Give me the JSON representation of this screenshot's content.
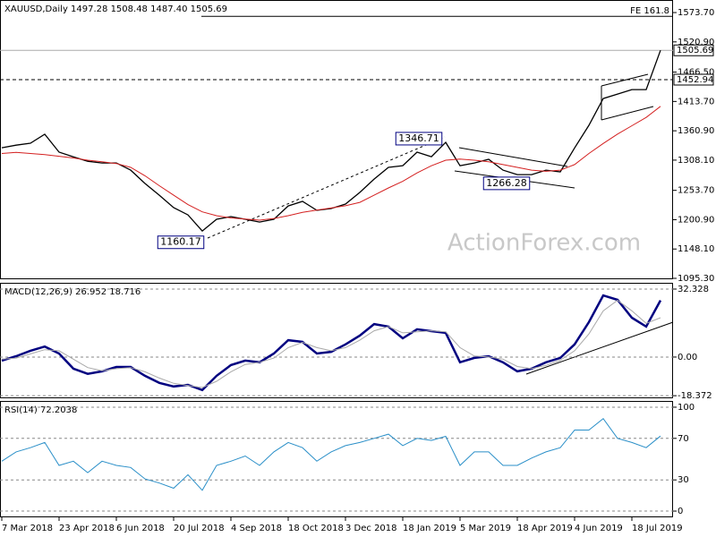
{
  "watermark": "ActionForex.com",
  "chart_data": [
    {
      "type": "line",
      "title": "XAUUSD,Daily 1497.28 1508.48 1487.40 1505.69",
      "x": [
        0,
        8,
        16,
        24,
        32,
        40,
        48,
        56,
        64,
        72,
        80,
        88,
        96,
        104,
        112,
        120,
        128,
        136,
        144,
        152,
        160,
        168,
        176,
        184,
        192,
        200,
        208,
        216,
        224,
        232,
        240,
        248,
        256,
        264,
        272,
        280,
        288,
        296,
        304,
        312,
        320,
        328,
        336,
        344,
        352,
        360,
        368
      ],
      "series": [
        {
          "name": "XAUUSD",
          "color": "#000000",
          "values": [
            1330.4,
            1335,
            1338.5,
            1354.6,
            1322.4,
            1314,
            1306,
            1303,
            1303,
            1290,
            1266,
            1245,
            1222.5,
            1209.6,
            1180.6,
            1201.6,
            1206.4,
            1201.6,
            1196.7,
            1201.6,
            1225.7,
            1233.8,
            1217.7,
            1220.9,
            1229,
            1249.9,
            1274,
            1295,
            1298.2,
            1322.4,
            1314.3,
            1340,
            1298,
            1303,
            1309.5,
            1290,
            1282,
            1282,
            1290,
            1287,
            1330,
            1370.7,
            1419,
            1427,
            1435,
            1435,
            1505.69
          ]
        },
        {
          "name": "MA",
          "color": "#d42020",
          "values": [
            1320,
            1322,
            1320,
            1318,
            1315,
            1312,
            1308,
            1305,
            1302,
            1295,
            1280,
            1262,
            1245,
            1228,
            1215,
            1208,
            1204,
            1202,
            1200,
            1203,
            1208,
            1214,
            1218,
            1222,
            1226,
            1232,
            1245,
            1258,
            1270,
            1285,
            1298,
            1308,
            1310,
            1308,
            1305,
            1300,
            1295,
            1290,
            1288,
            1290,
            1300,
            1320,
            1338,
            1355,
            1370,
            1385,
            1405
          ]
        }
      ],
      "xlim": [
        0,
        370
      ],
      "ylim": [
        1093.7,
        1596.3
      ],
      "yticks": [
        {
          "value": 1573.7,
          "label": "1573.70"
        },
        {
          "value": 1520.9,
          "label": "1520.90"
        },
        {
          "value": 1466.5,
          "label": "1466.50"
        },
        {
          "value": 1413.7,
          "label": "1413.70"
        },
        {
          "value": 1360.9,
          "label": "1360.90"
        },
        {
          "value": 1308.1,
          "label": "1308.10"
        },
        {
          "value": 1253.7,
          "label": "1253.70"
        },
        {
          "value": 1200.9,
          "label": "1200.90"
        },
        {
          "value": 1148.1,
          "label": "1148.10"
        },
        {
          "value": 1095.3,
          "label": "1095.30"
        }
      ],
      "grid": false,
      "levels": [
        {
          "value": 1505.69,
          "style": "solid"
        },
        {
          "value": 1452.94,
          "style": "dashed"
        }
      ],
      "fe_level": {
        "label": "FE 161.8",
        "value": 1567
      },
      "annotations": [
        {
          "value": 1346.71,
          "x": 233
        },
        {
          "value": 1266.28,
          "x": 282
        },
        {
          "value": 1160.17,
          "x": 100
        }
      ]
    },
    {
      "type": "line",
      "title": "MACD(12,26,9) 26.952 18.716",
      "x": [
        0,
        8,
        16,
        24,
        32,
        40,
        48,
        56,
        64,
        72,
        80,
        88,
        96,
        104,
        112,
        120,
        128,
        136,
        144,
        152,
        160,
        168,
        176,
        184,
        192,
        200,
        208,
        216,
        224,
        232,
        240,
        248,
        256,
        264,
        272,
        280,
        288,
        296,
        304,
        312,
        320,
        328,
        336,
        344,
        352,
        360,
        368
      ],
      "series": [
        {
          "name": "MACD",
          "color": "#000080",
          "values": [
            -1.7,
            0.4,
            3,
            5,
            1.7,
            -5.5,
            -8,
            -6.8,
            -4.7,
            -4.7,
            -8.9,
            -12.3,
            -14,
            -13.2,
            -15.7,
            -8.9,
            -3.8,
            -1.7,
            -2.5,
            1.7,
            8,
            7.2,
            1.7,
            2.5,
            6,
            10.2,
            15.7,
            14.5,
            8.9,
            13.2,
            12.3,
            11.5,
            -2.5,
            -0.4,
            0.4,
            -2.5,
            -6.8,
            -5.5,
            -2.5,
            -0.4,
            6,
            16.6,
            29.3,
            27.2,
            18.7,
            14.5,
            26.952
          ]
        },
        {
          "name": "Signal",
          "color": "#a8a8a8",
          "values": [
            -1,
            -0.5,
            1.5,
            3.5,
            3,
            -1,
            -5,
            -6.5,
            -5.5,
            -5,
            -7,
            -10,
            -12.5,
            -13.5,
            -14.5,
            -11.5,
            -7,
            -3.5,
            -2.5,
            -0.5,
            4.5,
            7,
            4.5,
            3,
            4.5,
            8,
            12.5,
            14.5,
            11.5,
            12,
            12.5,
            12,
            4.5,
            0.5,
            0,
            -1,
            -4.5,
            -5.5,
            -4,
            -1.5,
            3,
            11,
            22,
            27,
            22,
            16,
            18.716
          ]
        }
      ],
      "xlim": [
        0,
        370
      ],
      "ylim": [
        -19.6,
        35.3
      ],
      "yticks": [
        32.328,
        {
          "value": 0,
          "label": "0.00"
        },
        -18.372
      ],
      "grid": true
    },
    {
      "type": "line",
      "title": "RSI(14) 72.2038",
      "x": [
        0,
        8,
        16,
        24,
        32,
        40,
        48,
        56,
        64,
        72,
        80,
        88,
        96,
        104,
        112,
        120,
        128,
        136,
        144,
        152,
        160,
        168,
        176,
        184,
        192,
        200,
        208,
        216,
        224,
        232,
        240,
        248,
        256,
        264,
        272,
        280,
        288,
        296,
        304,
        312,
        320,
        328,
        336,
        344,
        352,
        360,
        368
      ],
      "series": [
        {
          "name": "RSI",
          "color": "#2a8fc8",
          "values": [
            48,
            57,
            61,
            66,
            44,
            48,
            37,
            48,
            44,
            42,
            31,
            27,
            22,
            35,
            20,
            44,
            48,
            53,
            44,
            57,
            66,
            61,
            48,
            57,
            63,
            66,
            70,
            74,
            63,
            70,
            68,
            72,
            44,
            57,
            57,
            44,
            44,
            51,
            57,
            61,
            78,
            78,
            89,
            70,
            66,
            61,
            72.2038
          ]
        }
      ],
      "xlim": [
        0,
        370
      ],
      "ylim": [
        -6,
        106
      ],
      "yticks": [
        100,
        70,
        30,
        0
      ],
      "grid": true,
      "xticks": [
        {
          "value": 0,
          "label": "7 Mar 2018"
        },
        {
          "value": 32,
          "label": "23 Apr 2018"
        },
        {
          "value": 64,
          "label": "6 Jun 2018"
        },
        {
          "value": 96,
          "label": "20 Jul 2018"
        },
        {
          "value": 128,
          "label": "4 Sep 2018"
        },
        {
          "value": 160,
          "label": "18 Oct 2018"
        },
        {
          "value": 192,
          "label": "3 Dec 2018"
        },
        {
          "value": 224,
          "label": "18 Jan 2019"
        },
        {
          "value": 256,
          "label": "5 Mar 2019"
        },
        {
          "value": 288,
          "label": "18 Apr 2019"
        },
        {
          "value": 320,
          "label": "4 Jun 2019"
        },
        {
          "value": 352,
          "label": "18 Jul 2019"
        }
      ]
    }
  ]
}
